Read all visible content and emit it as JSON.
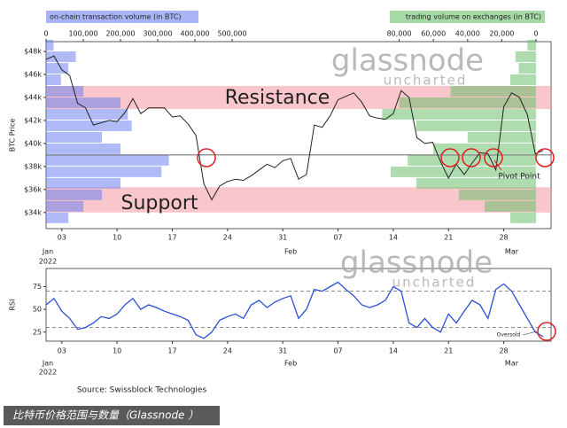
{
  "chart_data": [
    {
      "type": "line",
      "ylabel": "BTC Price",
      "color": "#222222",
      "x": [
        "2022-01-01",
        "2022-01-02",
        "2022-01-03",
        "2022-01-04",
        "2022-01-05",
        "2022-01-06",
        "2022-01-07",
        "2022-01-08",
        "2022-01-09",
        "2022-01-10",
        "2022-01-11",
        "2022-01-12",
        "2022-01-13",
        "2022-01-14",
        "2022-01-15",
        "2022-01-16",
        "2022-01-17",
        "2022-01-18",
        "2022-01-19",
        "2022-01-20",
        "2022-01-21",
        "2022-01-22",
        "2022-01-23",
        "2022-01-24",
        "2022-01-25",
        "2022-01-26",
        "2022-01-27",
        "2022-01-28",
        "2022-01-29",
        "2022-01-30",
        "2022-01-31",
        "2022-02-01",
        "2022-02-02",
        "2022-02-03",
        "2022-02-04",
        "2022-02-05",
        "2022-02-06",
        "2022-02-07",
        "2022-02-08",
        "2022-02-09",
        "2022-02-10",
        "2022-02-11",
        "2022-02-12",
        "2022-02-13",
        "2022-02-14",
        "2022-02-15",
        "2022-02-16",
        "2022-02-17",
        "2022-02-18",
        "2022-02-19",
        "2022-02-20",
        "2022-02-21",
        "2022-02-22",
        "2022-02-23",
        "2022-02-24",
        "2022-02-25",
        "2022-02-26",
        "2022-02-27",
        "2022-02-28",
        "2022-03-01",
        "2022-03-02",
        "2022-03-03",
        "2022-03-04",
        "2022-03-05"
      ],
      "values": [
        47300,
        47600,
        46400,
        45900,
        43500,
        43100,
        41600,
        41800,
        42000,
        41900,
        42700,
        43900,
        42600,
        43100,
        43100,
        43100,
        42300,
        42400,
        41700,
        40700,
        36500,
        35100,
        36300,
        36700,
        36900,
        36800,
        37200,
        37700,
        38200,
        37900,
        38500,
        38700,
        36900,
        37300,
        41600,
        41400,
        42400,
        43800,
        44100,
        44400,
        43600,
        42400,
        42200,
        42100,
        42600,
        44600,
        44000,
        40500,
        40000,
        40100,
        38400,
        37000,
        38200,
        37300,
        38300,
        39200,
        39100,
        37700,
        43200,
        44400,
        44000,
        42500,
        39100,
        39400
      ],
      "xlim": [
        "2022-01-01",
        "2022-03-06"
      ],
      "xticks": [
        {
          "value": "2022-01-03",
          "label": "03"
        },
        {
          "value": "2022-01-10",
          "label": "10"
        },
        {
          "value": "2022-01-17",
          "label": "17"
        },
        {
          "value": "2022-01-24",
          "label": "24"
        },
        {
          "value": "2022-01-31",
          "label": "31"
        },
        {
          "value": "2022-02-07",
          "label": "07"
        },
        {
          "value": "2022-02-14",
          "label": "14"
        },
        {
          "value": "2022-02-21",
          "label": "21"
        },
        {
          "value": "2022-02-28",
          "label": "28"
        }
      ],
      "month_ticks": [
        {
          "value": "2022-01-01",
          "label": "Jan"
        },
        {
          "value": "2022-02-01",
          "label": "Feb"
        },
        {
          "value": "2022-03-01",
          "label": "Mar"
        }
      ],
      "year_label": "2022",
      "ylim": [
        32600,
        48850
      ],
      "yticks": [
        {
          "value": 34000,
          "label": "$34k"
        },
        {
          "value": 36000,
          "label": "$36k"
        },
        {
          "value": 38000,
          "label": "$38k"
        },
        {
          "value": 40000,
          "label": "$40k"
        },
        {
          "value": 42000,
          "label": "$42k"
        },
        {
          "value": 44000,
          "label": "$44k"
        },
        {
          "value": 46000,
          "label": "$46k"
        },
        {
          "value": 48000,
          "label": "$48k"
        }
      ],
      "bands": [
        {
          "label": "Resistance",
          "range": [
            43000,
            45000
          ],
          "color": "#f5a0a8"
        },
        {
          "label": "Support",
          "range": [
            34000,
            36200
          ],
          "color": "#f5a0a8"
        }
      ],
      "pivot": {
        "label": "Pivot Point",
        "value": 39000
      },
      "volume_profiles": {
        "levels": [
          33500,
          34500,
          35500,
          36500,
          37500,
          38500,
          39500,
          40500,
          41500,
          42500,
          43500,
          44500,
          45500,
          46500,
          47500,
          48500
        ],
        "onchain": {
          "label": "on-chain transaction volume (in BTC)",
          "color": "#6f82f0",
          "values": [
            60000,
            100000,
            150000,
            200000,
            310000,
            330000,
            200000,
            150000,
            230000,
            220000,
            200000,
            100000,
            40000,
            60000,
            80000,
            20000
          ],
          "lim": [
            0,
            500000
          ],
          "ticks": [
            0,
            {
              "value": 100000,
              "label": "100,000"
            },
            {
              "value": 200000,
              "label": "200,000"
            },
            {
              "value": 300000,
              "label": "300,000"
            },
            {
              "value": 400000,
              "label": "400,000"
            },
            {
              "value": 500000,
              "label": "500,000"
            }
          ]
        },
        "exchange": {
          "label": "trading volume on exchanges (in BTC)",
          "color": "#6cc06c",
          "values": [
            15000,
            30000,
            45000,
            70000,
            85000,
            75000,
            60000,
            40000,
            70000,
            90000,
            80000,
            50000,
            15000,
            10000,
            12000,
            5000
          ],
          "lim": [
            100000,
            0
          ],
          "ticks": [
            {
              "value": 80000,
              "label": "80,000"
            },
            {
              "value": 60000,
              "label": "60,000"
            },
            {
              "value": 40000,
              "label": "40,000"
            },
            {
              "value": 20000,
              "label": "20,000"
            },
            0
          ]
        }
      }
    },
    {
      "type": "line",
      "ylabel": "RSI",
      "color": "#2a4fd6",
      "x": [
        "2022-01-01",
        "2022-01-02",
        "2022-01-03",
        "2022-01-04",
        "2022-01-05",
        "2022-01-06",
        "2022-01-07",
        "2022-01-08",
        "2022-01-09",
        "2022-01-10",
        "2022-01-11",
        "2022-01-12",
        "2022-01-13",
        "2022-01-14",
        "2022-01-15",
        "2022-01-16",
        "2022-01-17",
        "2022-01-18",
        "2022-01-19",
        "2022-01-20",
        "2022-01-21",
        "2022-01-22",
        "2022-01-23",
        "2022-01-24",
        "2022-01-25",
        "2022-01-26",
        "2022-01-27",
        "2022-01-28",
        "2022-01-29",
        "2022-01-30",
        "2022-01-31",
        "2022-02-01",
        "2022-02-02",
        "2022-02-03",
        "2022-02-04",
        "2022-02-05",
        "2022-02-06",
        "2022-02-07",
        "2022-02-08",
        "2022-02-09",
        "2022-02-10",
        "2022-02-11",
        "2022-02-12",
        "2022-02-13",
        "2022-02-14",
        "2022-02-15",
        "2022-02-16",
        "2022-02-17",
        "2022-02-18",
        "2022-02-19",
        "2022-02-20",
        "2022-02-21",
        "2022-02-22",
        "2022-02-23",
        "2022-02-24",
        "2022-02-25",
        "2022-02-26",
        "2022-02-27",
        "2022-02-28",
        "2022-03-01",
        "2022-03-02",
        "2022-03-03",
        "2022-03-04",
        "2022-03-05"
      ],
      "values": [
        55,
        62,
        48,
        40,
        28,
        30,
        35,
        42,
        40,
        45,
        55,
        62,
        50,
        55,
        52,
        48,
        45,
        42,
        38,
        22,
        18,
        25,
        38,
        42,
        45,
        40,
        55,
        60,
        52,
        58,
        62,
        65,
        40,
        50,
        72,
        70,
        75,
        80,
        72,
        65,
        55,
        52,
        55,
        60,
        75,
        70,
        35,
        30,
        40,
        30,
        25,
        45,
        35,
        48,
        60,
        55,
        40,
        72,
        78,
        70,
        55,
        40,
        25,
        20
      ],
      "xlim": [
        "2022-01-01",
        "2022-03-06"
      ],
      "xticks": [
        {
          "value": "2022-01-03",
          "label": "03"
        },
        {
          "value": "2022-01-10",
          "label": "10"
        },
        {
          "value": "2022-01-17",
          "label": "17"
        },
        {
          "value": "2022-01-24",
          "label": "24"
        },
        {
          "value": "2022-01-31",
          "label": "31"
        },
        {
          "value": "2022-02-07",
          "label": "07"
        },
        {
          "value": "2022-02-14",
          "label": "14"
        },
        {
          "value": "2022-02-21",
          "label": "21"
        },
        {
          "value": "2022-02-28",
          "label": "28"
        }
      ],
      "month_ticks": [
        {
          "value": "2022-01-01",
          "label": "Jan"
        },
        {
          "value": "2022-02-01",
          "label": "Feb"
        },
        {
          "value": "2022-03-01",
          "label": "Mar"
        }
      ],
      "year_label": "2022",
      "ylim": [
        15,
        95
      ],
      "yticks": [
        25,
        50,
        75
      ],
      "thresholds": [
        70,
        30
      ],
      "annotation": "Oversold"
    }
  ],
  "watermark": [
    "glassnode",
    "uncharted"
  ],
  "source": "Source: Swissblock Technologies",
  "caption": "比特币价格范围与数量（Glassnode ）"
}
